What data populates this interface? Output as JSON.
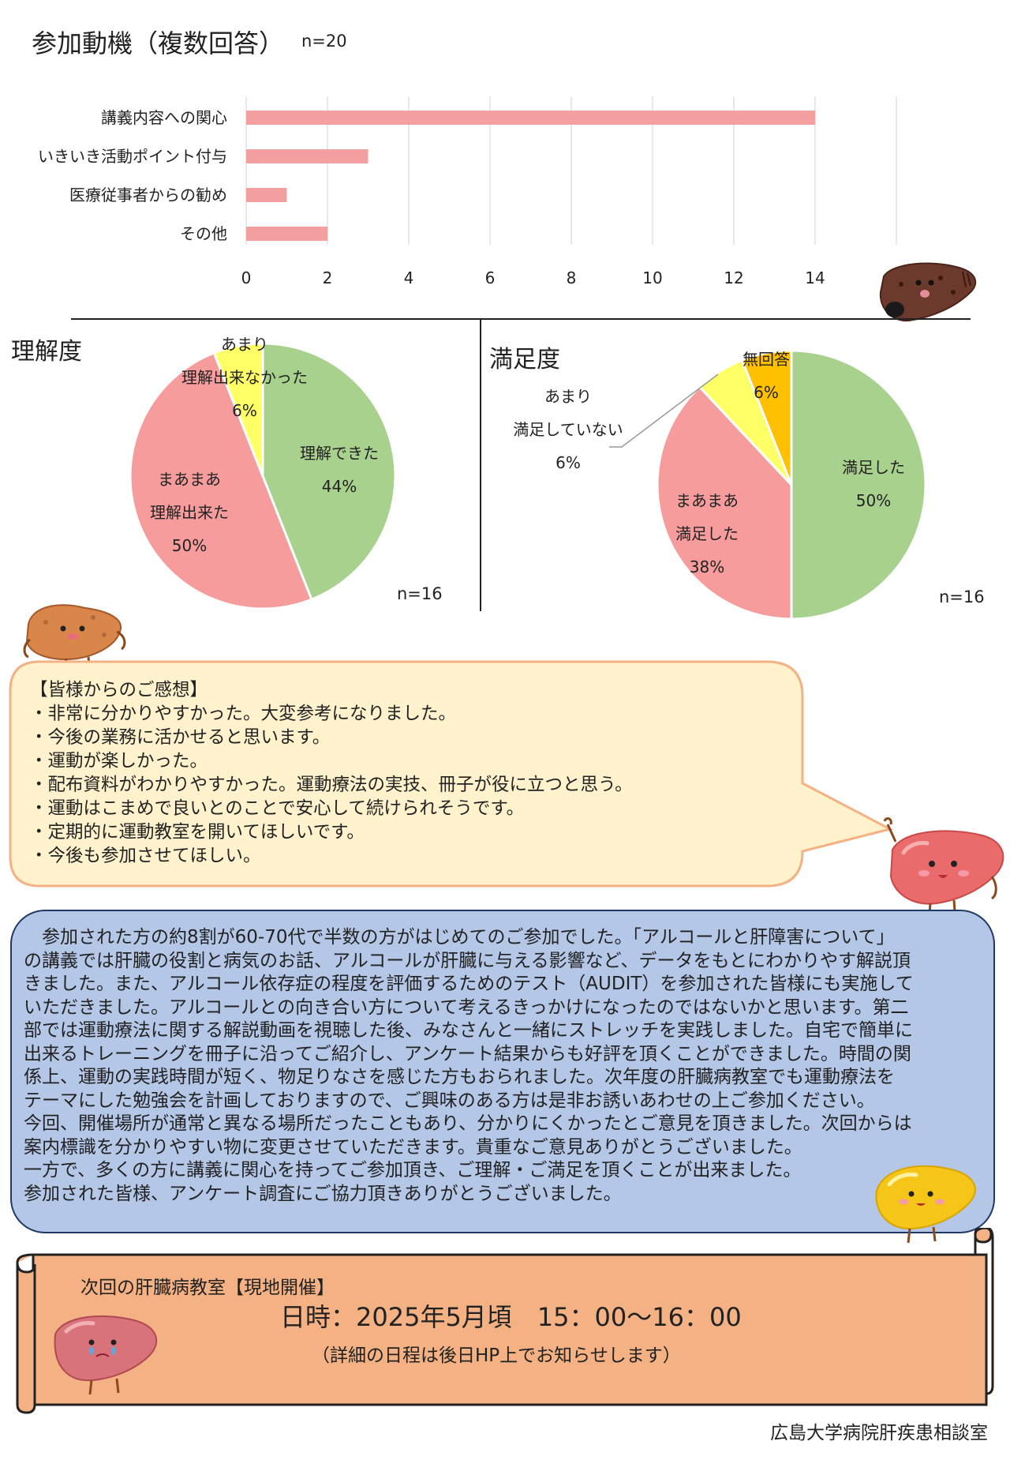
{
  "motivation": {
    "title": "参加動機（複数回答）",
    "n": "n=20",
    "chart_data": {
      "type": "bar",
      "orientation": "horizontal",
      "categories": [
        "講義内容への関心",
        "いきいき活動ポイント付与",
        "医療従事者からの勧め",
        "その他"
      ],
      "values": [
        14,
        3,
        1,
        2
      ],
      "xlim": [
        0,
        16
      ],
      "xticks": [
        "0",
        "2",
        "4",
        "6",
        "8",
        "10",
        "12",
        "14"
      ],
      "grid": "vertical",
      "color": "#f4a0a0"
    }
  },
  "understanding": {
    "title": "理解度",
    "n": "n=16",
    "chart_data": {
      "type": "pie",
      "slices": [
        {
          "label_lines": [
            "理解できた"
          ],
          "percent_label": "44%",
          "value": 44,
          "color": "#a9d18e"
        },
        {
          "label_lines": [
            "まあまあ",
            "理解出来た"
          ],
          "percent_label": "50%",
          "value": 50,
          "color": "#f79c9c"
        },
        {
          "label_lines": [
            "あまり",
            "理解出来なかった"
          ],
          "percent_label": "6%",
          "value": 6,
          "color": "#ffff66"
        }
      ]
    }
  },
  "satisfaction": {
    "title": "満足度",
    "n": "n=16",
    "chart_data": {
      "type": "pie",
      "slices": [
        {
          "label_lines": [
            "満足した"
          ],
          "percent_label": "50%",
          "value": 50,
          "color": "#a9d18e"
        },
        {
          "label_lines": [
            "まあまあ",
            "満足した"
          ],
          "percent_label": "38%",
          "value": 38,
          "color": "#f79c9c"
        },
        {
          "label_lines": [
            "あまり",
            "満足していない"
          ],
          "percent_label": "6%",
          "value": 6,
          "color": "#ffff66"
        },
        {
          "label_lines": [
            "無回答"
          ],
          "percent_label": "6%",
          "value": 6,
          "color": "#ffc000"
        }
      ]
    }
  },
  "comments": {
    "heading": "【皆様からのご感想】",
    "items": [
      "・非常に分かりやすかった。大変参考になりました。",
      "・今後の業務に活かせると思います。",
      "・運動が楽しかった。",
      "・配布資料がわかりやすかった。運動療法の実技、冊子が役に立つと思う。",
      "・運動はこまめで良いとのことで安心して続けられそうです。",
      "・定期的に運動教室を開いてほしいです。",
      "・今後も参加させてほしい。"
    ]
  },
  "report": {
    "lines": [
      "　参加された方の約8割が60-70代で半数の方がはじめてのご参加でした。「アルコールと肝障害について」",
      "の講義では肝臓の役割と病気のお話、アルコールが肝臓に与える影響など、データをもとにわかりやす解説頂",
      "きました。また、アルコール依存症の程度を評価するためのテスト（AUDIT）を参加された皆様にも実施して",
      "いただきました。アルコールとの向き合い方について考えるきっかけになったのではないかと思います。第二",
      "部では運動療法に関する解説動画を視聴した後、みなさんと一緒にストレッチを実践しました。自宅で簡単に",
      "出来るトレーニングを冊子に沿ってご紹介し、アンケート結果からも好評を頂くことができました。時間の関",
      "係上、運動の実践時間が短く、物足りなさを感じた方もおられました。次年度の肝臓病教室でも運動療法を",
      "テーマにした勉強会を計画しておりますので、ご興味のある方は是非お誘いあわせの上ご参加ください。",
      "今回、開催場所が通常と異なる場所だったこともあり、分かりにくかったとご意見を頂きました。次回からは",
      "案内標識を分かりやすい物に変更させていただきます。貴重なご意見ありがとうございました。",
      "一方で、多くの方に講義に関心を持ってご参加頂き、ご理解・ご満足を頂くことが出来ました。",
      "参加された皆様、アンケート調査にご協力頂きありがとうございました。"
    ]
  },
  "next_class": {
    "heading": "次回の肝臓病教室【現地開催】",
    "datetime": "日時：2025年5月頃　15：00～16：00",
    "note": "（詳細の日程は後日HP上でお知らせします）"
  },
  "footer": {
    "organization": "広島大学病院肝疾患相談室"
  },
  "colors": {
    "bar": "#f4a0a0",
    "bubble_bg": "#fff2cc",
    "bubble_border": "#f4b183",
    "report_bg": "#b4c7e7",
    "report_border": "#1f3864",
    "scroll_bg": "#f4b183",
    "liver_red": "#e06060",
    "liver_brown": "#7a4030",
    "liver_orange": "#d98b4a",
    "liver_yellow": "#f5c518"
  },
  "icons": [
    "liver-dark-icon",
    "liver-brown-icon",
    "liver-waving-icon",
    "liver-yellow-icon",
    "liver-crying-icon"
  ]
}
